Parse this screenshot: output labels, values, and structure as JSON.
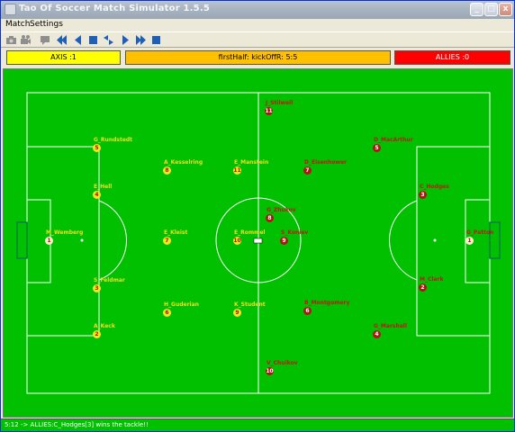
{
  "window": {
    "title": "Tao Of Soccer Match Simulator 1.5.5",
    "controls": [
      "_",
      "□",
      "x"
    ]
  },
  "menu": {
    "items": [
      "Match",
      "Settings"
    ]
  },
  "toolbar": {
    "buttons": [
      "camera-icon",
      "projector-icon",
      "chat-icon",
      "rewind-fast-icon",
      "step-back-icon",
      "stop-icon",
      "swap-icon",
      "step-forward-icon",
      "forward-fast-icon",
      "stop-square-icon"
    ]
  },
  "score": {
    "axis": "AXIS :1",
    "status": "firstHalf: kickOffR: 5:5",
    "allies": "ALLIES :0",
    "colors": {
      "axis": "#ffff00",
      "status": "#ffc000",
      "allies": "#ff0000"
    }
  },
  "players": [
    {
      "name": "M_Wemberg",
      "num": "1",
      "team": "axis",
      "gk": true
    },
    {
      "name": "G_Rundstedt",
      "num": "5",
      "team": "axis"
    },
    {
      "name": "E_Hell",
      "num": "4",
      "team": "axis"
    },
    {
      "name": "S_Feldmar",
      "num": "3",
      "team": "axis"
    },
    {
      "name": "A_Keck",
      "num": "2",
      "team": "axis"
    },
    {
      "name": "A_Kesselring",
      "num": "8",
      "team": "axis"
    },
    {
      "name": "E_Kleist",
      "num": "7",
      "team": "axis"
    },
    {
      "name": "H_Guderian",
      "num": "6",
      "team": "axis"
    },
    {
      "name": "E_Manstein",
      "num": "11",
      "team": "axis"
    },
    {
      "name": "E_Rommel",
      "num": "10",
      "team": "axis"
    },
    {
      "name": "K_Student",
      "num": "9",
      "team": "axis"
    },
    {
      "name": "J_Stilwell",
      "num": "11",
      "team": "allies"
    },
    {
      "name": "D_MacArthur",
      "num": "5",
      "team": "allies"
    },
    {
      "name": "D_Eisenhower",
      "num": "7",
      "team": "allies"
    },
    {
      "name": "C_Hodges",
      "num": "3",
      "team": "allies"
    },
    {
      "name": "G_Zhukov",
      "num": "8",
      "team": "allies"
    },
    {
      "name": "S_Koniev",
      "num": "9",
      "team": "allies"
    },
    {
      "name": "G_Patton",
      "num": "1",
      "team": "allies",
      "gk": true
    },
    {
      "name": "M_Clark",
      "num": "2",
      "team": "allies"
    },
    {
      "name": "B_Montgomery",
      "num": "6",
      "team": "allies"
    },
    {
      "name": "G_Marshall",
      "num": "4",
      "team": "allies"
    },
    {
      "name": "V_Chuikov",
      "num": "10",
      "team": "allies"
    }
  ],
  "status_message": "5:12 -> ALLIES:C_Hodges[3] wins the tackle!!"
}
